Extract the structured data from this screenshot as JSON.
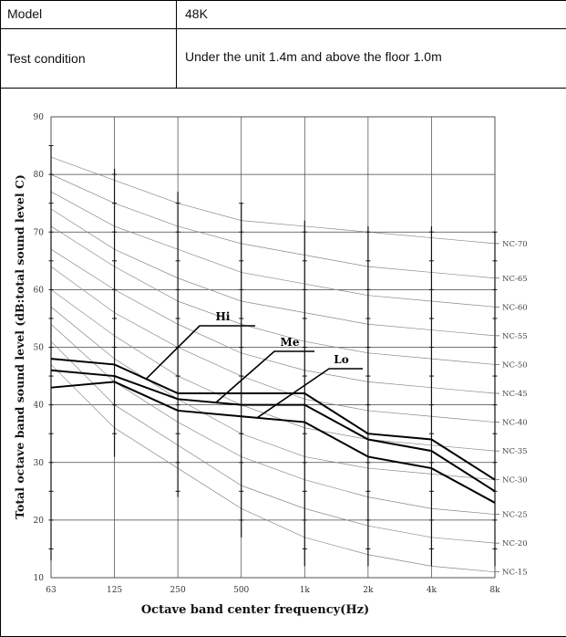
{
  "spec_table": {
    "rows": [
      {
        "label": "Model",
        "value": "48K"
      },
      {
        "label": "Test condition",
        "value": "Under the unit 1.4m and above the floor 1.0m"
      }
    ]
  },
  "chart_data": {
    "type": "line",
    "xlabel": "Octave band center frequency(Hz)",
    "ylabel": "Total octave band sound level (dB:total sound level C)",
    "categories": [
      "63",
      "125",
      "250",
      "500",
      "1k",
      "2k",
      "4k",
      "8k"
    ],
    "ylim": [
      10,
      90
    ],
    "yticks": [
      10,
      20,
      30,
      40,
      50,
      60,
      70,
      80,
      90
    ],
    "grid": true,
    "series": [
      {
        "name": "Hi",
        "values": [
          48,
          47,
          42,
          42,
          42,
          35,
          34,
          27
        ]
      },
      {
        "name": "Me",
        "values": [
          46,
          45,
          41,
          40,
          40,
          34,
          32,
          25
        ]
      },
      {
        "name": "Lo",
        "values": [
          43,
          44,
          39,
          38,
          37,
          31,
          29,
          23
        ]
      }
    ],
    "nc_curves": [
      {
        "label": "NC-70",
        "values": [
          83,
          79,
          75,
          72,
          71,
          70,
          69,
          68
        ]
      },
      {
        "label": "NC-65",
        "values": [
          80,
          75,
          71,
          68,
          66,
          64,
          63,
          62
        ]
      },
      {
        "label": "NC-60",
        "values": [
          77,
          71,
          67,
          63,
          61,
          59,
          58,
          57
        ]
      },
      {
        "label": "NC-55",
        "values": [
          74,
          67,
          62,
          58,
          56,
          54,
          53,
          52
        ]
      },
      {
        "label": "NC-50",
        "values": [
          71,
          64,
          58,
          54,
          51,
          49,
          48,
          47
        ]
      },
      {
        "label": "NC-45",
        "values": [
          67,
          60,
          54,
          49,
          46,
          44,
          43,
          42
        ]
      },
      {
        "label": "NC-40",
        "values": [
          64,
          56,
          50,
          45,
          41,
          39,
          38,
          37
        ]
      },
      {
        "label": "NC-35",
        "values": [
          60,
          52,
          45,
          40,
          36,
          34,
          33,
          32
        ]
      },
      {
        "label": "NC-30",
        "values": [
          57,
          48,
          41,
          35,
          31,
          29,
          28,
          27
        ]
      },
      {
        "label": "NC-25",
        "values": [
          54,
          44,
          37,
          31,
          27,
          24,
          22,
          21
        ]
      },
      {
        "label": "NC-20",
        "values": [
          51,
          40,
          33,
          26,
          22,
          19,
          17,
          16
        ]
      },
      {
        "label": "NC-15",
        "values": [
          47,
          36,
          29,
          22,
          17,
          14,
          12,
          11
        ]
      }
    ],
    "error_bars": [
      {
        "x": "63",
        "low": 13,
        "high": 85
      },
      {
        "x": "125",
        "low": 31,
        "high": 81
      },
      {
        "x": "250",
        "low": 24,
        "high": 77
      },
      {
        "x": "500",
        "low": 17,
        "high": 75
      },
      {
        "x": "1k",
        "low": 12,
        "high": 72
      },
      {
        "x": "2k",
        "low": 12,
        "high": 71
      },
      {
        "x": "4k",
        "low": 12,
        "high": 71
      },
      {
        "x": "8k",
        "low": 12,
        "high": 70
      }
    ],
    "colors": {
      "series": "#000000",
      "nc": "#8a8a8a",
      "grid": "#000000"
    }
  }
}
